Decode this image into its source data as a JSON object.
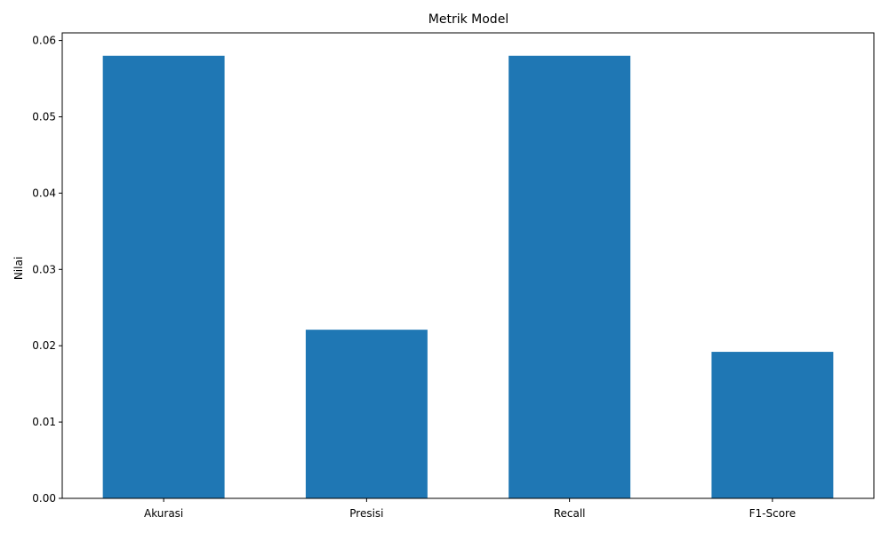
{
  "chart_data": {
    "type": "bar",
    "title": "Metrik Model",
    "xlabel": "",
    "ylabel": "Nilai",
    "categories": [
      "Akurasi",
      "Presisi",
      "Recall",
      "F1-Score"
    ],
    "values": [
      0.058,
      0.0221,
      0.058,
      0.0192
    ],
    "ylim": [
      0,
      0.061
    ],
    "yticks": [
      "0.00",
      "0.01",
      "0.02",
      "0.03",
      "0.04",
      "0.05",
      "0.06"
    ],
    "bar_color": "#1f77b4",
    "grid": false
  }
}
